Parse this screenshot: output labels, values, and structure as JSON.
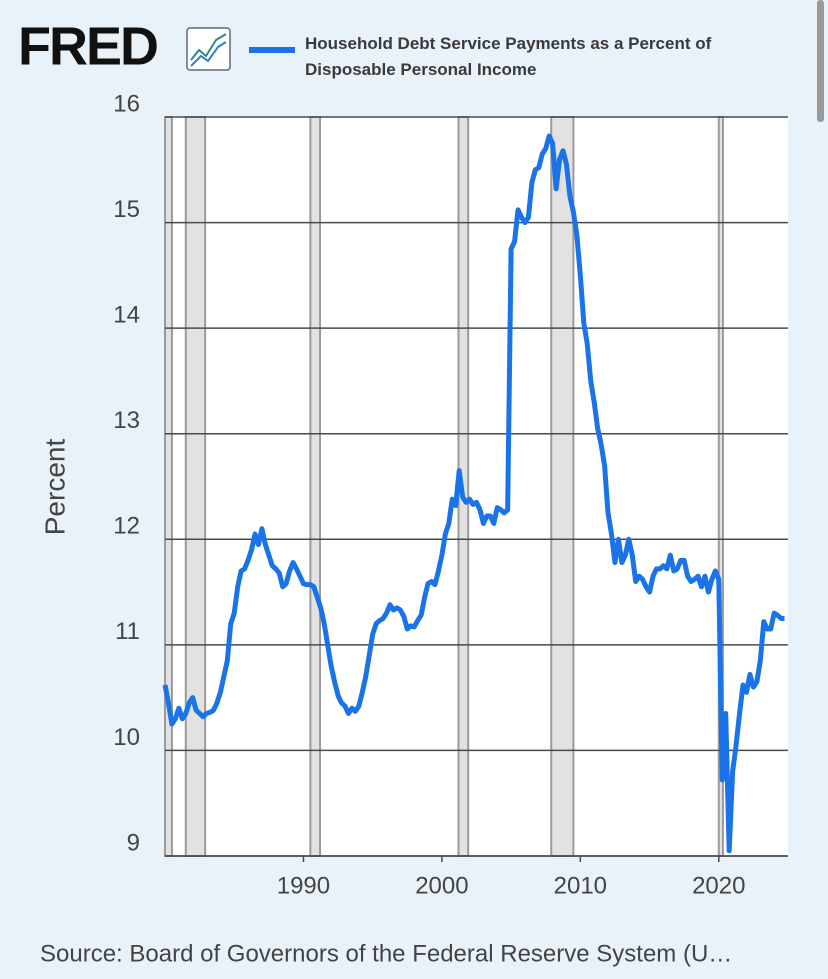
{
  "chart_data": {
    "type": "line",
    "logo": "FRED",
    "y_label": "Percent",
    "source": "Source: Board of Governors of the Federal Reserve System (U…",
    "xlim": [
      1980,
      2025
    ],
    "xticks": [
      1990,
      2000,
      2010,
      2020
    ],
    "ylim": [
      9,
      16
    ],
    "yticks": [
      9,
      10,
      11,
      12,
      13,
      14,
      15,
      16
    ],
    "grid": true,
    "recessions": [
      [
        1980.0,
        1980.5
      ],
      [
        1981.5,
        1982.9
      ],
      [
        1990.5,
        1991.2
      ],
      [
        2001.2,
        2001.9
      ],
      [
        2007.9,
        2009.5
      ],
      [
        2020.0,
        2020.3
      ]
    ],
    "x": [
      1980,
      1980.25,
      1980.5,
      1980.75,
      1981,
      1981.25,
      1981.5,
      1981.75,
      1982,
      1982.25,
      1982.5,
      1982.75,
      1983,
      1983.25,
      1983.5,
      1983.75,
      1984,
      1984.25,
      1984.5,
      1984.75,
      1985,
      1985.25,
      1985.5,
      1985.75,
      1986,
      1986.25,
      1986.5,
      1986.75,
      1987,
      1987.25,
      1987.5,
      1987.75,
      1988,
      1988.25,
      1988.5,
      1988.75,
      1989,
      1989.25,
      1989.5,
      1989.75,
      1990,
      1990.25,
      1990.5,
      1990.75,
      1991,
      1991.25,
      1991.5,
      1991.75,
      1992,
      1992.25,
      1992.5,
      1992.75,
      1993,
      1993.25,
      1993.5,
      1993.75,
      1994,
      1994.25,
      1994.5,
      1994.75,
      1995,
      1995.25,
      1995.5,
      1995.75,
      1996,
      1996.25,
      1996.5,
      1996.75,
      1997,
      1997.25,
      1997.5,
      1997.75,
      1998,
      1998.25,
      1998.5,
      1998.75,
      1999,
      1999.25,
      1999.5,
      1999.75,
      2000,
      2000.25,
      2000.5,
      2000.75,
      2001,
      2001.25,
      2001.5,
      2001.75,
      2002,
      2002.25,
      2002.5,
      2002.75,
      2003,
      2003.25,
      2003.5,
      2003.75,
      2004,
      2004.25,
      2004.5,
      2004.75,
      2005,
      2005.25,
      2005.5,
      2005.75,
      2006,
      2006.25,
      2006.5,
      2006.75,
      2007,
      2007.25,
      2007.5,
      2007.75,
      2008,
      2008.25,
      2008.5,
      2008.75,
      2009,
      2009.25,
      2009.5,
      2009.75,
      2010,
      2010.25,
      2010.5,
      2010.75,
      2011,
      2011.25,
      2011.5,
      2011.75,
      2012,
      2012.25,
      2012.5,
      2012.75,
      2013,
      2013.25,
      2013.5,
      2013.75,
      2014,
      2014.25,
      2014.5,
      2014.75,
      2015,
      2015.25,
      2015.5,
      2015.75,
      2016,
      2016.25,
      2016.5,
      2016.75,
      2017,
      2017.25,
      2017.5,
      2017.75,
      2018,
      2018.25,
      2018.5,
      2018.75,
      2019,
      2019.25,
      2019.5,
      2019.75,
      2020,
      2020.25,
      2020.5,
      2020.75,
      2021,
      2021.25,
      2021.5,
      2021.75,
      2022,
      2022.25,
      2022.5,
      2022.75,
      2023,
      2023.25,
      2023.5,
      2023.75,
      2024,
      2024.25,
      2024.5,
      2024.75
    ],
    "series": [
      {
        "name": "Household Debt Service Payments as a Percent of Disposable Personal Income",
        "color": "#1a73e8",
        "values": [
          10.62,
          10.45,
          10.25,
          10.3,
          10.4,
          10.3,
          10.35,
          10.45,
          10.5,
          10.38,
          10.35,
          10.32,
          10.35,
          10.36,
          10.38,
          10.45,
          10.55,
          10.7,
          10.85,
          11.2,
          11.3,
          11.55,
          11.7,
          11.72,
          11.8,
          11.9,
          12.05,
          11.95,
          12.1,
          11.95,
          11.85,
          11.75,
          11.72,
          11.68,
          11.55,
          11.58,
          11.7,
          11.78,
          11.72,
          11.65,
          11.58,
          11.57,
          11.57,
          11.55,
          11.45,
          11.35,
          11.2,
          11.0,
          10.8,
          10.65,
          10.52,
          10.45,
          10.42,
          10.35,
          10.4,
          10.37,
          10.42,
          10.55,
          10.7,
          10.9,
          11.1,
          11.2,
          11.23,
          11.25,
          11.3,
          11.38,
          11.33,
          11.35,
          11.33,
          11.27,
          11.15,
          11.18,
          11.17,
          11.23,
          11.28,
          11.45,
          11.58,
          11.6,
          11.57,
          11.7,
          11.85,
          12.05,
          12.15,
          12.38,
          12.32,
          12.65,
          12.4,
          12.35,
          12.38,
          12.33,
          12.35,
          12.28,
          12.15,
          12.22,
          12.22,
          12.15,
          12.3,
          12.28,
          12.25,
          12.28,
          14.75,
          14.82,
          15.12,
          15.05,
          15.0,
          15.05,
          15.38,
          15.5,
          15.52,
          15.65,
          15.7,
          15.82,
          15.75,
          15.32,
          15.6,
          15.68,
          15.55,
          15.25,
          15.1,
          14.88,
          14.5,
          14.05,
          13.85,
          13.5,
          13.3,
          13.05,
          12.9,
          12.7,
          12.25,
          12.05,
          11.78,
          12.0,
          11.78,
          11.85,
          12.0,
          11.85,
          11.6,
          11.65,
          11.62,
          11.55,
          11.5,
          11.65,
          11.72,
          11.72,
          11.75,
          11.72,
          11.85,
          11.7,
          11.72,
          11.8,
          11.8,
          11.65,
          11.6,
          11.62,
          11.65,
          11.55,
          11.65,
          11.5,
          11.62,
          11.7,
          11.62,
          9.72,
          10.35,
          9.05,
          9.8,
          10.05,
          10.35,
          10.62,
          10.55,
          10.72,
          10.6,
          10.65,
          10.85,
          11.22,
          11.15,
          11.15,
          11.3,
          11.28,
          11.25,
          11.25
        ]
      }
    ]
  }
}
